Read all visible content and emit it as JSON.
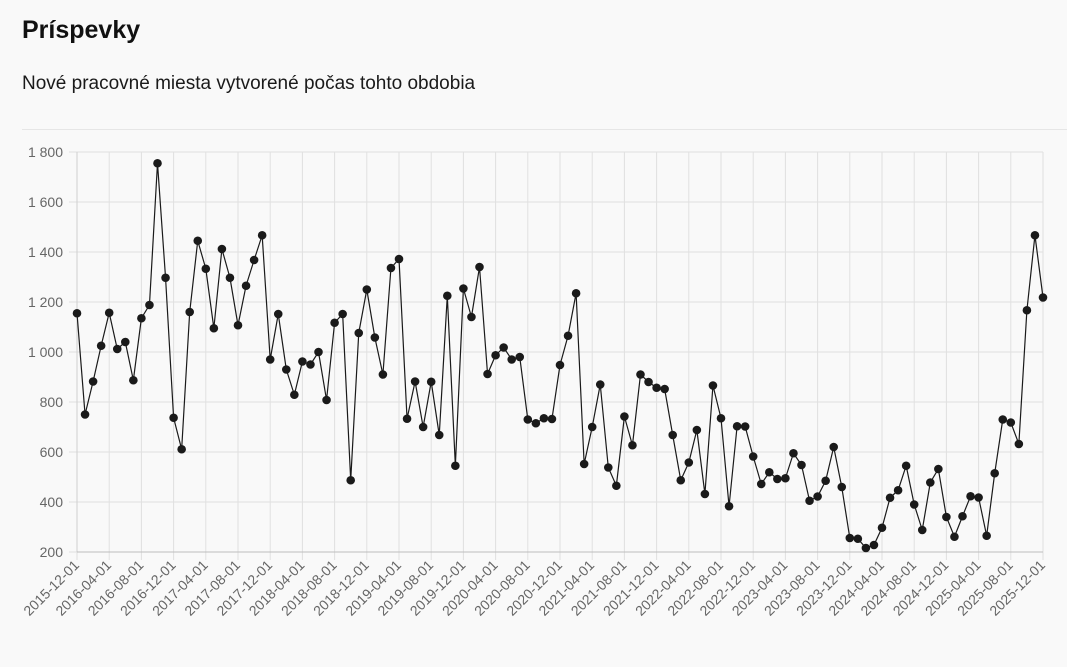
{
  "header": {
    "title": "Príspevky",
    "subtitle": "Nové pracovné miesta vytvorené počas tohto obdobia"
  },
  "chart_data": {
    "type": "line",
    "title": "",
    "xlabel": "",
    "ylabel": "",
    "ylim": [
      200,
      1800
    ],
    "y_ticks": [
      200,
      400,
      600,
      800,
      1000,
      1200,
      1400,
      1600,
      1800
    ],
    "y_tick_labels": [
      "200",
      "400",
      "600",
      "800",
      "1 000",
      "1 200",
      "1 400",
      "1 600",
      "1 800"
    ],
    "x_tick_labels": [
      "2015-12-01",
      "2016-04-01",
      "2016-08-01",
      "2016-12-01",
      "2017-04-01",
      "2017-08-01",
      "2017-12-01",
      "2018-04-01",
      "2018-08-01",
      "2018-12-01",
      "2019-04-01",
      "2019-08-01",
      "2019-12-01",
      "2020-04-01",
      "2020-08-01",
      "2020-12-01",
      "2021-04-01",
      "2021-08-01",
      "2021-12-01",
      "2022-04-01",
      "2022-08-01",
      "2022-12-01",
      "2023-04-01",
      "2023-08-01",
      "2023-12-01",
      "2024-04-01",
      "2024-08-01",
      "2024-12-01",
      "2025-04-01",
      "2025-08-01",
      "2025-12-01"
    ],
    "grid": true,
    "line_color": "#1a1a1a",
    "grid_color": "#e0e0e0",
    "series": [
      {
        "values": [
          1155,
          750,
          882,
          1025,
          1157,
          1012,
          1040,
          887,
          1135,
          1188,
          1755,
          1297,
          737,
          611,
          1160,
          1445,
          1333,
          1095,
          1412,
          1297,
          1107,
          1265,
          1368,
          1467,
          970,
          1152,
          930,
          829,
          962,
          950,
          1000,
          808,
          1117,
          1152,
          487,
          1076,
          1250,
          1058,
          910,
          1336,
          1372,
          733,
          882,
          700,
          881,
          668,
          1225,
          545,
          1254,
          1140,
          1340,
          912,
          987,
          1018,
          970,
          980,
          730,
          715,
          735,
          732,
          948,
          1065,
          1235,
          552,
          700,
          870,
          538,
          465,
          742,
          627,
          910,
          880,
          857,
          852,
          668,
          487,
          558,
          688,
          432,
          866,
          735,
          383,
          703,
          702,
          582,
          472,
          519,
          492,
          495,
          595,
          548,
          405,
          422,
          485,
          620,
          460,
          256,
          253,
          216,
          228,
          297,
          417,
          447,
          545,
          390,
          288,
          478,
          532,
          340,
          261,
          343,
          423,
          418,
          265,
          515,
          730,
          718,
          632,
          1167,
          1467,
          1218
        ]
      }
    ]
  }
}
